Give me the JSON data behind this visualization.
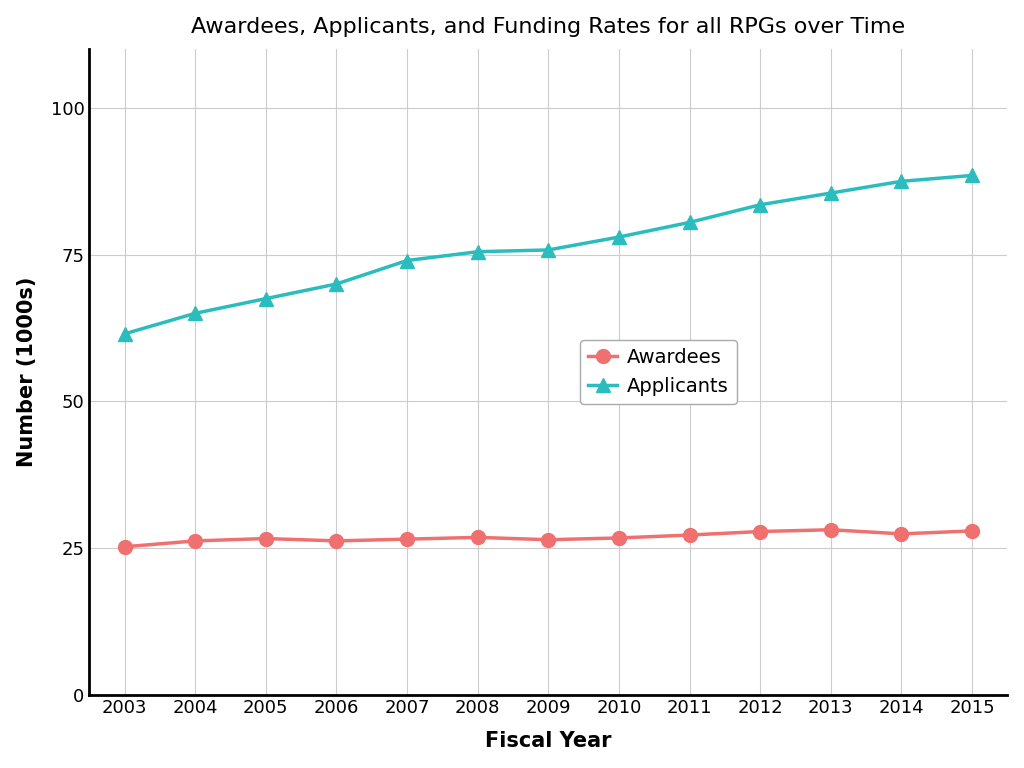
{
  "title": "Awardees, Applicants, and Funding Rates for all RPGs over Time",
  "xlabel": "Fiscal Year",
  "ylabel": "Number (1000s)",
  "years": [
    2003,
    2004,
    2005,
    2006,
    2007,
    2008,
    2009,
    2010,
    2011,
    2012,
    2013,
    2014,
    2015
  ],
  "awardees": [
    25.2,
    26.2,
    26.6,
    26.2,
    26.5,
    26.8,
    26.4,
    26.7,
    27.2,
    27.8,
    28.1,
    27.4,
    27.9
  ],
  "applicants": [
    61.5,
    65.0,
    67.5,
    70.0,
    74.0,
    75.5,
    75.8,
    78.0,
    80.5,
    83.5,
    85.5,
    87.5,
    88.5
  ],
  "awardees_color": "#F07070",
  "applicants_color": "#2BBDBD",
  "background_color": "#FFFFFF",
  "grid_color": "#CCCCCC",
  "ylim": [
    0,
    110
  ],
  "yticks": [
    0,
    25,
    50,
    75,
    100
  ],
  "title_fontsize": 16,
  "label_fontsize": 15,
  "tick_fontsize": 13,
  "legend_fontsize": 14,
  "line_width": 2.5,
  "marker_size": 10
}
